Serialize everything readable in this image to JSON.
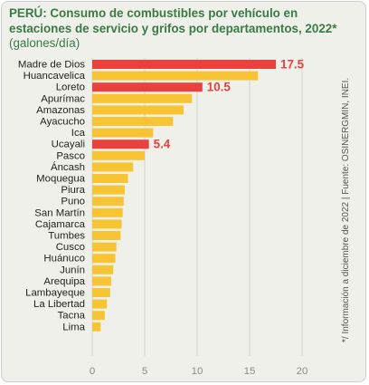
{
  "title": "PERÚ: Consumo de combustibles por vehículo en estaciones de servicio y grifos por departamentos, 2022*",
  "subtitle": "(galones/día)",
  "note": "*/ Información a diciembre de 2022  |  Fuente: OSINERGMIN, INEI.",
  "colors": {
    "default_bar": "#f7c534",
    "highlight_bar": "#e8413e",
    "title": "#3a7a45",
    "background": "#eff0e9"
  },
  "chart_data": {
    "type": "bar",
    "orientation": "horizontal",
    "categories": [
      "Madre de Dios",
      "Huancavelica",
      "Loreto",
      "Apurímac",
      "Amazonas",
      "Ayacucho",
      "Ica",
      "Ucayali",
      "Pasco",
      "Áncash",
      "Moquegua",
      "Piura",
      "Puno",
      "San Martín",
      "Cajamarca",
      "Tumbes",
      "Cusco",
      "Huánuco",
      "Junín",
      "Arequipa",
      "Lambayeque",
      "La Libertad",
      "Tacna",
      "Lima"
    ],
    "values": [
      17.5,
      15.8,
      10.5,
      9.5,
      8.7,
      7.7,
      5.8,
      5.4,
      5.0,
      3.9,
      3.4,
      3.1,
      3.0,
      2.9,
      2.8,
      2.7,
      2.3,
      2.2,
      2.0,
      1.8,
      1.7,
      1.4,
      1.2,
      0.8
    ],
    "highlighted": [
      "Madre de Dios",
      "Loreto",
      "Ucayali"
    ],
    "data_labels": {
      "Madre de Dios": "17.5",
      "Loreto": "10.5",
      "Ucayali": "5.4"
    },
    "xlim": [
      0,
      20
    ],
    "xticks": [
      0,
      5,
      10,
      15,
      20
    ],
    "grid": true,
    "legend": "none"
  }
}
